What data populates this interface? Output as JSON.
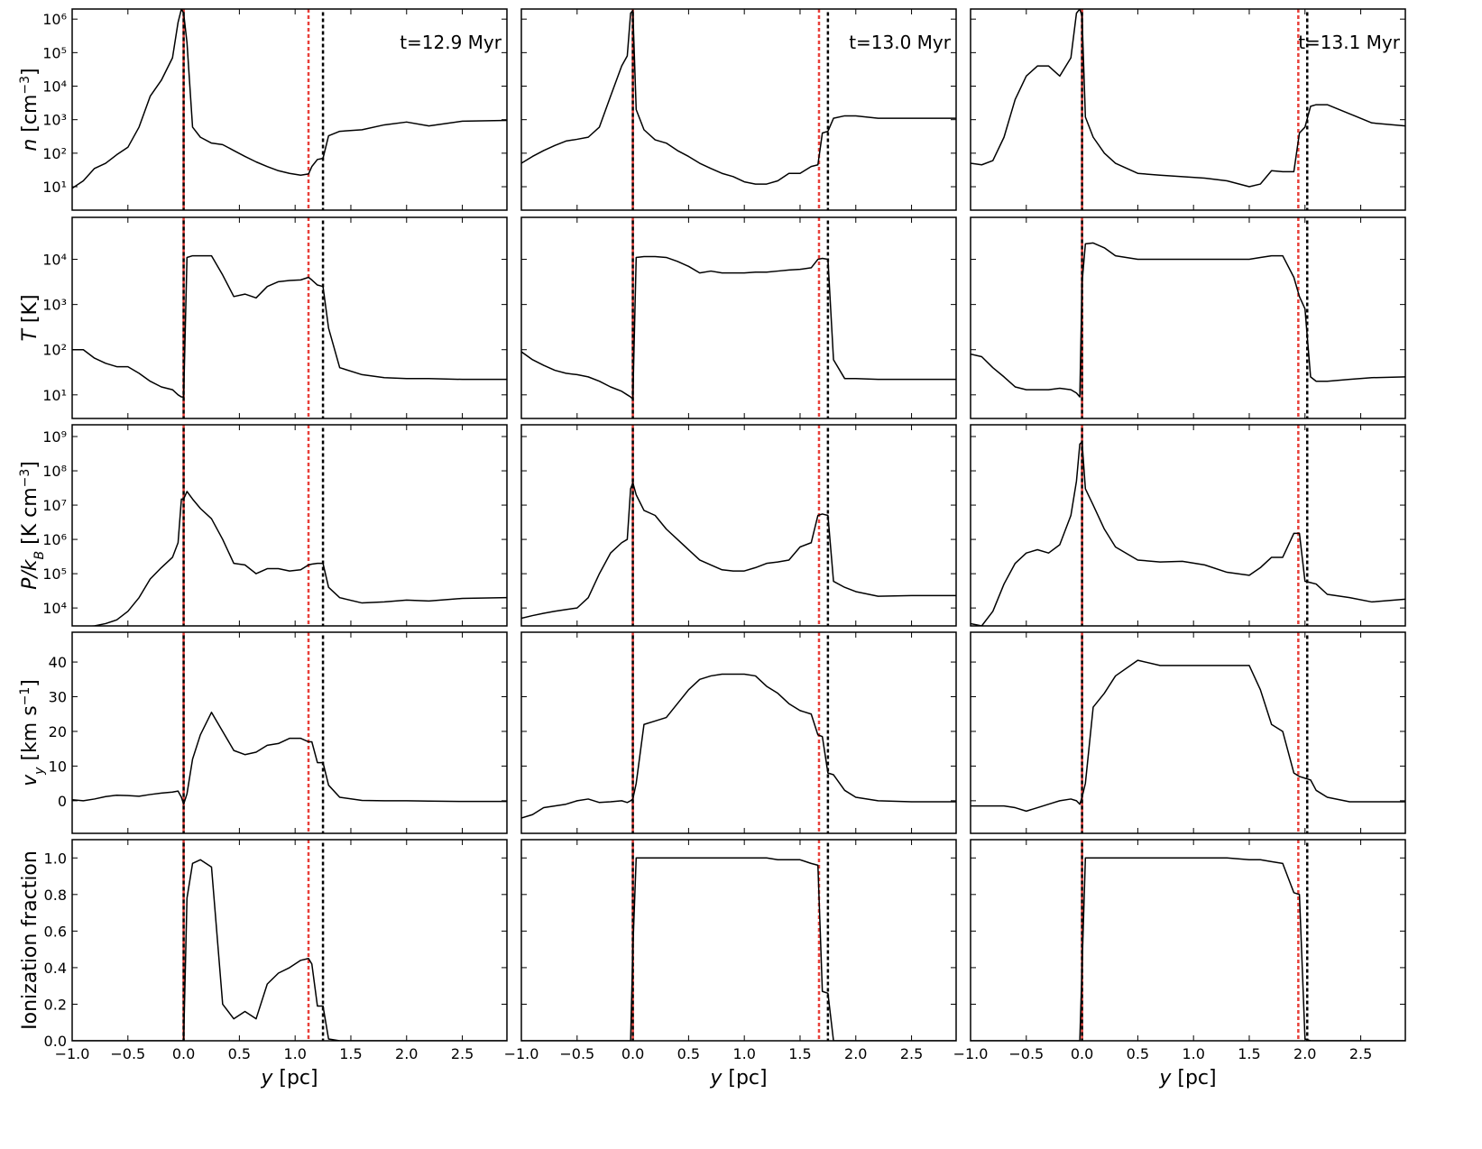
{
  "chart_data": {
    "type": "line",
    "line_color": "#000000",
    "xlim": [
      -1,
      2.9
    ],
    "xticks": [
      {
        "value": -1,
        "label": "−1.0"
      },
      {
        "value": -0.5,
        "label": "−0.5"
      },
      {
        "value": 0,
        "label": "0.0"
      },
      {
        "value": 0.5,
        "label": "0.5"
      },
      {
        "value": 1,
        "label": "1.0"
      },
      {
        "value": 1.5,
        "label": "1.5"
      },
      {
        "value": 2,
        "label": "2.0"
      },
      {
        "value": 2.5,
        "label": "2.5"
      }
    ],
    "xlabel": [
      {
        "text": "y",
        "style": "italic"
      },
      {
        "text": " [pc]"
      }
    ],
    "rows": [
      {
        "ylabel": [
          {
            "text": "n",
            "style": "italic"
          },
          {
            "text": " [cm"
          },
          {
            "text": "−3",
            "shift": "super"
          },
          {
            "text": "]"
          }
        ],
        "log": true,
        "ylim": [
          2,
          2000000
        ],
        "yticks": [
          {
            "value": 10,
            "label": "10¹"
          },
          {
            "value": 100,
            "label": "10²"
          },
          {
            "value": 1000,
            "label": "10³"
          },
          {
            "value": 10000,
            "label": "10⁴"
          },
          {
            "value": 100000,
            "label": "10⁵"
          },
          {
            "value": 1000000,
            "label": "10⁶"
          }
        ]
      },
      {
        "ylabel": [
          {
            "text": "T",
            "style": "italic"
          },
          {
            "text": " [K]"
          }
        ],
        "log": true,
        "ylim": [
          3,
          85000
        ],
        "yticks": [
          {
            "value": 10,
            "label": "10¹"
          },
          {
            "value": 100,
            "label": "10²"
          },
          {
            "value": 1000,
            "label": "10³"
          },
          {
            "value": 10000,
            "label": "10⁴"
          }
        ]
      },
      {
        "ylabel": [
          {
            "text": "P/k",
            "style": "italic"
          },
          {
            "text": "B",
            "style": "italic",
            "shift": "sub"
          },
          {
            "text": " [K cm"
          },
          {
            "text": "−3",
            "shift": "super"
          },
          {
            "text": "]"
          }
        ],
        "log": true,
        "ylim": [
          3000,
          2200000000
        ],
        "yticks": [
          {
            "value": 10000,
            "label": "10⁴"
          },
          {
            "value": 100000,
            "label": "10⁵"
          },
          {
            "value": 1000000,
            "label": "10⁶"
          },
          {
            "value": 10000000,
            "label": "10⁷"
          },
          {
            "value": 100000000,
            "label": "10⁸"
          },
          {
            "value": 1000000000,
            "label": "10⁹"
          }
        ]
      },
      {
        "ylabel": [
          {
            "text": "v",
            "style": "italic"
          },
          {
            "text": "y",
            "style": "italic",
            "shift": "sub"
          },
          {
            "text": " [km s"
          },
          {
            "text": "−1",
            "shift": "super"
          },
          {
            "text": "]"
          }
        ],
        "log": false,
        "ylim": [
          -9.4,
          48.6
        ],
        "yticks": [
          0,
          10,
          20,
          30,
          40
        ]
      },
      {
        "ylabel": [
          {
            "text": "Ionization fraction"
          }
        ],
        "log": false,
        "ylim": [
          0,
          1.1
        ],
        "yticks": [
          {
            "value": 0,
            "label": "0.0"
          },
          {
            "value": 0.2,
            "label": "0.2"
          },
          {
            "value": 0.4,
            "label": "0.4"
          },
          {
            "value": 0.6,
            "label": "0.6"
          },
          {
            "value": 0.8,
            "label": "0.8"
          },
          {
            "value": 1,
            "label": "1.0"
          }
        ]
      }
    ],
    "columns": [
      {
        "annotation": "t=12.9 Myr",
        "markers": [
          {
            "color": "#e8403a",
            "x": [
              0,
              1.12
            ]
          },
          {
            "color": "#000000",
            "x": [
              0,
              1.25
            ]
          }
        ],
        "x": [
          -1,
          -0.9,
          -0.8,
          -0.7,
          -0.6,
          -0.5,
          -0.4,
          -0.3,
          -0.2,
          -0.1,
          -0.05,
          -0.02,
          0,
          0.03,
          0.08,
          0.15,
          0.25,
          0.35,
          0.45,
          0.55,
          0.65,
          0.75,
          0.85,
          0.95,
          1.05,
          1.12,
          1.15,
          1.2,
          1.25,
          1.3,
          1.4,
          1.6,
          1.8,
          2.0,
          2.2,
          2.5,
          2.9
        ],
        "series": [
          {
            "values": [
              9,
              15,
              35,
              50,
              90,
              150,
              600,
              5000,
              15000,
              70000,
              800000,
              2000000,
              1500000,
              200000,
              600,
              300,
              200,
              180,
              120,
              80,
              55,
              40,
              30,
              25,
              22,
              24,
              40,
              65,
              70,
              330,
              450,
              500,
              700,
              850,
              650,
              900,
              950
            ]
          },
          {
            "values": [
              100,
              100,
              65,
              50,
              42,
              42,
              30,
              20,
              15,
              13,
              10,
              9,
              9,
              11000,
              12000,
              12000,
              12000,
              4500,
              1500,
              1700,
              1400,
              2500,
              3200,
              3400,
              3500,
              4000,
              3500,
              2700,
              2500,
              300,
              40,
              28,
              24,
              23,
              23,
              22,
              22
            ]
          },
          {
            "values": [
              2500,
              2800,
              3000,
              3500,
              4500,
              8000,
              20000,
              70000,
              150000,
              300000,
              800000,
              15000000,
              15000000,
              25000000,
              15000000,
              8000000,
              4000000,
              1000000,
              200000,
              180000,
              100000,
              140000,
              140000,
              120000,
              130000,
              180000,
              190000,
              200000,
              200000,
              40000,
              20000,
              14000,
              15000,
              17000,
              16000,
              19000,
              20000
            ]
          },
          {
            "values": [
              0.3,
              0,
              0.5,
              1.2,
              1.6,
              1.5,
              1.3,
              1.8,
              2.2,
              2.5,
              2.8,
              1,
              -1,
              2,
              12,
              19,
              25.5,
              20,
              14.5,
              13.3,
              14,
              16,
              16.5,
              18,
              18,
              17,
              17,
              11,
              11,
              4.5,
              1,
              0.1,
              0,
              0,
              -0.1,
              -0.2,
              -0.2
            ]
          },
          {
            "values": [
              0,
              0,
              0,
              0,
              0,
              0,
              0,
              0,
              0,
              0,
              0,
              0,
              0,
              0.78,
              0.97,
              0.99,
              0.95,
              0.2,
              0.12,
              0.16,
              0.12,
              0.31,
              0.37,
              0.4,
              0.44,
              0.45,
              0.42,
              0.19,
              0.19,
              0.01,
              0,
              0,
              0,
              0,
              0,
              0,
              0
            ]
          }
        ]
      },
      {
        "annotation": "t=13.0 Myr",
        "markers": [
          {
            "color": "#e8403a",
            "x": [
              0,
              1.67
            ]
          },
          {
            "color": "#000000",
            "x": [
              0,
              1.75
            ]
          }
        ],
        "x": [
          -1,
          -0.9,
          -0.8,
          -0.7,
          -0.6,
          -0.5,
          -0.4,
          -0.3,
          -0.2,
          -0.1,
          -0.05,
          -0.02,
          0,
          0.03,
          0.1,
          0.2,
          0.3,
          0.4,
          0.5,
          0.6,
          0.7,
          0.8,
          0.9,
          1.0,
          1.1,
          1.2,
          1.3,
          1.4,
          1.5,
          1.6,
          1.66,
          1.7,
          1.75,
          1.8,
          1.9,
          2.0,
          2.2,
          2.5,
          2.9
        ],
        "series": [
          {
            "values": [
              50,
              80,
              120,
              170,
              230,
              260,
              300,
              600,
              5000,
              40000,
              80000,
              1500000,
              1800000,
              2000,
              500,
              250,
              200,
              120,
              80,
              50,
              35,
              25,
              20,
              14,
              12,
              12,
              15,
              25,
              25,
              40,
              45,
              400,
              450,
              1100,
              1300,
              1300,
              1100,
              1100,
              1100
            ]
          },
          {
            "values": [
              90,
              60,
              45,
              35,
              30,
              28,
              25,
              20,
              15,
              12,
              10,
              9,
              8,
              11000,
              11500,
              11500,
              11000,
              9000,
              7000,
              5000,
              5500,
              5000,
              5000,
              5000,
              5200,
              5200,
              5500,
              5800,
              6000,
              6500,
              10000,
              10500,
              10000,
              60,
              23,
              23,
              22,
              22,
              22
            ]
          },
          {
            "values": [
              5000,
              6000,
              7000,
              8000,
              9000,
              10000,
              20000,
              100000,
              400000,
              800000,
              1000000,
              30000000,
              45000000,
              20000000,
              7000000,
              5000000,
              2000000,
              1000000,
              500000,
              250000,
              180000,
              130000,
              120000,
              120000,
              150000,
              200000,
              220000,
              250000,
              600000,
              800000,
              5000000,
              5500000,
              5000000,
              60000,
              40000,
              30000,
              22000,
              23000,
              23000
            ]
          },
          {
            "values": [
              -5,
              -4,
              -2,
              -1.5,
              -1,
              0,
              0.5,
              -0.5,
              -0.3,
              0,
              -0.5,
              0,
              0.5,
              5,
              22,
              23,
              24,
              28,
              32,
              35,
              36,
              36.5,
              36.5,
              36.5,
              36,
              33,
              31,
              28,
              26,
              25,
              19,
              18.5,
              8,
              7.5,
              3,
              1,
              0,
              -0.3,
              -0.3
            ]
          },
          {
            "values": [
              0,
              0,
              0,
              0,
              0,
              0,
              0,
              0,
              0,
              0,
              0,
              0,
              0.5,
              1,
              1,
              1,
              1,
              1,
              1,
              1,
              1,
              1,
              1,
              1,
              1,
              1,
              0.99,
              0.99,
              0.99,
              0.97,
              0.96,
              0.27,
              0.26,
              0,
              0,
              0,
              0,
              0,
              0
            ]
          }
        ]
      },
      {
        "annotation": "t=13.1 Myr",
        "markers": [
          {
            "color": "#e8403a",
            "x": [
              0,
              1.94
            ]
          },
          {
            "color": "#000000",
            "x": [
              0,
              2.02
            ]
          }
        ],
        "x": [
          -1,
          -0.9,
          -0.8,
          -0.7,
          -0.6,
          -0.5,
          -0.4,
          -0.3,
          -0.2,
          -0.1,
          -0.05,
          -0.02,
          0,
          0.03,
          0.1,
          0.2,
          0.3,
          0.5,
          0.7,
          0.9,
          1.1,
          1.3,
          1.5,
          1.6,
          1.7,
          1.8,
          1.9,
          1.95,
          2.0,
          2.05,
          2.1,
          2.2,
          2.4,
          2.6,
          2.9
        ],
        "series": [
          {
            "values": [
              50,
              45,
              60,
              300,
              4000,
              20000,
              40000,
              40000,
              20000,
              70000,
              1500000,
              2000000,
              1200000,
              1200,
              300,
              100,
              50,
              25,
              22,
              20,
              18,
              15,
              10,
              12,
              30,
              28,
              28,
              400,
              600,
              2500,
              2800,
              2800,
              1500,
              800,
              650
            ]
          },
          {
            "values": [
              80,
              70,
              40,
              25,
              15,
              13,
              13,
              13,
              14,
              13,
              11,
              9,
              3000,
              22000,
              23000,
              18000,
              12000,
              10000,
              10000,
              10000,
              10000,
              10000,
              10000,
              11000,
              12000,
              12000,
              4000,
              1500,
              800,
              25,
              20,
              20,
              22,
              24,
              25
            ]
          },
          {
            "values": [
              3500,
              3000,
              8000,
              50000,
              200000,
              400000,
              500000,
              400000,
              700000,
              5000000,
              50000000,
              600000000,
              700000000,
              30000000,
              10000000,
              2000000,
              600000,
              250000,
              220000,
              230000,
              180000,
              110000,
              90000,
              150000,
              300000,
              300000,
              1500000,
              1500000,
              60000,
              55000,
              50000,
              25000,
              20000,
              15000,
              18000
            ]
          },
          {
            "values": [
              -1.5,
              -1.5,
              -1.5,
              -1.5,
              -2,
              -3,
              -2,
              -1,
              0,
              0.5,
              0,
              -1,
              1,
              5,
              27,
              31,
              36,
              40.5,
              39,
              39,
              39,
              39,
              39,
              32,
              22,
              20,
              8,
              7,
              6.5,
              6,
              3,
              1,
              -0.3,
              -0.3,
              -0.3
            ]
          },
          {
            "values": [
              0,
              0,
              0,
              0,
              0,
              0,
              0,
              0,
              0,
              0,
              0,
              0,
              0.4,
              1,
              1,
              1,
              1,
              1,
              1,
              1,
              1,
              1,
              0.99,
              0.99,
              0.98,
              0.97,
              0.81,
              0.8,
              0.01,
              0,
              0,
              0,
              0,
              0,
              0
            ]
          }
        ]
      }
    ]
  }
}
